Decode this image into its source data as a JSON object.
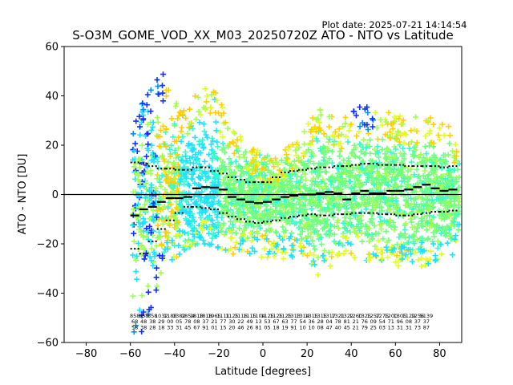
{
  "plot_date": "Plot date: 2025-07-21 14:14:54",
  "chart_data": {
    "type": "scatter",
    "title": "S-O3M_GOME_VOD_XX_M03_20250720Z ATO - NTO vs Latitude",
    "xlabel": "Latitude [degrees]",
    "ylabel": "ATO - NTO [DU]",
    "xlim": [
      -90,
      90
    ],
    "ylim": [
      -60,
      60
    ],
    "xticks": [
      -80,
      -60,
      -40,
      -20,
      0,
      20,
      40,
      60,
      80
    ],
    "yticks": [
      -60,
      -40,
      -20,
      0,
      20,
      40,
      60
    ],
    "xtick_labels": [
      "−80",
      "−60",
      "−40",
      "−20",
      "0",
      "20",
      "40",
      "60",
      "80"
    ],
    "ytick_labels": [
      "−60",
      "−40",
      "−20",
      "0",
      "20",
      "40",
      "60"
    ],
    "grid": false,
    "marker": "+",
    "zero_line": 0,
    "point_colors": [
      "#1030ff",
      "#0090ff",
      "#20e0ff",
      "#30ffd0",
      "#70ff80",
      "#a0ff50",
      "#e0ff20",
      "#ffd000",
      "#ffb000"
    ],
    "envelope": {
      "lat": [
        -59,
        -55,
        -50,
        -45,
        -40,
        -35,
        -30,
        -25,
        -20,
        -15,
        -10,
        -5,
        0,
        5,
        10,
        15,
        20,
        25,
        30,
        35,
        40,
        45,
        50,
        55,
        60,
        65,
        70,
        75,
        80,
        85,
        89
      ],
      "upper": [
        32,
        40,
        45,
        50,
        38,
        34,
        42,
        45,
        40,
        28,
        25,
        20,
        16,
        15,
        18,
        22,
        30,
        35,
        32,
        30,
        34,
        38,
        33,
        34,
        33,
        30,
        32,
        33,
        30,
        28,
        20
      ],
      "lower": [
        -58,
        -56,
        -45,
        -28,
        -26,
        -22,
        -20,
        -20,
        -22,
        -24,
        -25,
        -25,
        -26,
        -27,
        -26,
        -26,
        -28,
        -33,
        -30,
        -26,
        -25,
        -27,
        -28,
        -28,
        -29,
        -29,
        -30,
        -28,
        -27,
        -26,
        -20
      ]
    },
    "mean_lat": [
      -58,
      -54,
      -50,
      -46,
      -42,
      -38,
      -34,
      -30,
      -26,
      -22,
      -18,
      -14,
      -10,
      -6,
      -2,
      2,
      6,
      10,
      14,
      18,
      22,
      26,
      30,
      34,
      38,
      42,
      46,
      50,
      54,
      58,
      62,
      66,
      70,
      74,
      78,
      82,
      86
    ],
    "mean_values": [
      -8.5,
      -6.0,
      -5.0,
      -3.0,
      -1.5,
      -1.5,
      -1.0,
      2.5,
      3.0,
      2.8,
      2.0,
      -1.0,
      -2.0,
      -3.0,
      -3.5,
      -3.0,
      -2.0,
      -1.0,
      -0.5,
      0,
      0,
      0.5,
      1.0,
      0.5,
      -2.0,
      0.5,
      1.5,
      0.5,
      0.5,
      1.5,
      1.5,
      2.0,
      3.0,
      4.0,
      2.5,
      1.5,
      2.0
    ],
    "std_upper": [
      13.0,
      12.5,
      11.5,
      10.5,
      10.5,
      10.0,
      10.0,
      11.0,
      11.0,
      9.5,
      8.5,
      7.0,
      6.0,
      5.0,
      5.0,
      5.0,
      7.0,
      9.0,
      9.5,
      10.0,
      10.5,
      11.0,
      11.0,
      11.5,
      11.5,
      12.0,
      12.5,
      12.5,
      12.0,
      12.0,
      12.0,
      11.5,
      11.5,
      11.5,
      11.5,
      11.0,
      11.5
    ],
    "std_lower": [
      -22.0,
      -24.0,
      -19.0,
      -14.0,
      -10.5,
      -7.5,
      -5.0,
      -5.0,
      -5.5,
      -6.0,
      -7.5,
      -9.0,
      -10.0,
      -11.0,
      -11.5,
      -11.0,
      -10.5,
      -9.5,
      -9.0,
      -8.5,
      -8.0,
      -8.5,
      -8.5,
      -8.0,
      -8.0,
      -7.5,
      -7.5,
      -7.5,
      -8.0,
      -8.0,
      -8.5,
      -8.5,
      -8.0,
      -7.5,
      -7.0,
      -7.0,
      -6.5
    ],
    "count_lat": [
      -58,
      -54,
      -50,
      -46,
      -42,
      -38,
      -34,
      -30,
      -26,
      -22,
      -18,
      -14,
      -10,
      -6,
      -2,
      2,
      6,
      10,
      14,
      18,
      22,
      26,
      30,
      34,
      38,
      42,
      46,
      50,
      54,
      58,
      62,
      66,
      70,
      74,
      78,
      82,
      86,
      89
    ],
    "count_labels": [
      [
        "858",
        "68",
        "58"
      ],
      [
        "958",
        "48",
        "38"
      ],
      [
        "858",
        "38",
        "28"
      ],
      [
        "1032",
        "29",
        "18"
      ],
      [
        "1188",
        "00",
        "33"
      ],
      [
        "1382",
        "05",
        "31"
      ],
      [
        "1854",
        "78",
        "45"
      ],
      [
        "1818",
        "08",
        "67"
      ],
      [
        "1818",
        "37",
        "91"
      ],
      [
        "1965",
        "21",
        "01"
      ],
      [
        "1111",
        "77",
        "15"
      ],
      [
        "1125",
        "30",
        "20"
      ],
      [
        "1116",
        "22",
        "46"
      ],
      [
        "1115",
        "49",
        "26"
      ],
      [
        "1104",
        "13",
        "81"
      ],
      [
        "1125",
        "53",
        "05"
      ],
      [
        "1125",
        "67",
        "18"
      ],
      [
        "1125",
        "63",
        "19"
      ],
      [
        "1313",
        "77",
        "91"
      ],
      [
        "1314",
        "54",
        "10"
      ],
      [
        "1315",
        "36",
        "10"
      ],
      [
        "1315",
        "28",
        "08"
      ],
      [
        "1317",
        "04",
        "47"
      ],
      [
        "1321",
        "78",
        "40"
      ],
      [
        "1322",
        "81",
        "45"
      ],
      [
        "1260",
        "21",
        "21"
      ],
      [
        "1325",
        "76",
        "79"
      ],
      [
        "1257",
        "09",
        "25"
      ],
      [
        "1275",
        "54",
        "03"
      ],
      [
        "1200",
        "71",
        "13"
      ],
      [
        "1305",
        "96",
        "31"
      ],
      [
        "1129",
        "08",
        "31"
      ],
      [
        "1256",
        "37",
        "73"
      ],
      [
        "5139",
        "37",
        "87"
      ],
      [
        "",
        "",
        ""
      ],
      [
        "",
        "",
        ""
      ],
      [
        "",
        "",
        ""
      ],
      [
        "",
        "",
        ""
      ]
    ]
  }
}
